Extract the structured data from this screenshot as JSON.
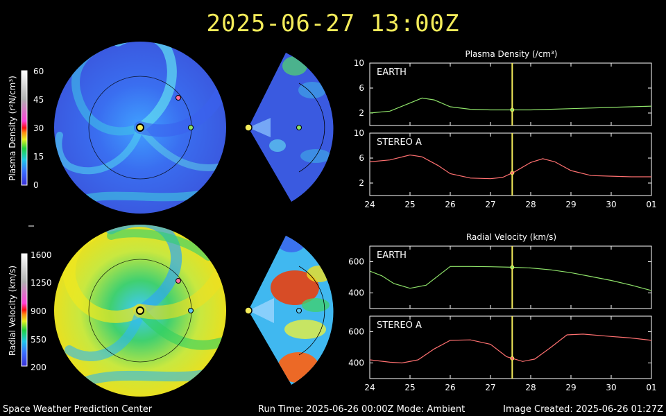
{
  "header": {
    "title": "2025-06-27 13:00Z"
  },
  "footer": {
    "left": "Space Weather Prediction Center",
    "center": "Run Time: 2025-06-26 00:00Z  Mode: Ambient",
    "right": "Image Created: 2025-06-26 01:27Z"
  },
  "colorbars": {
    "density": {
      "label": "Plasma Density (r²N/cm³)",
      "ticks": [
        "60",
        "45",
        "30",
        "15",
        "0"
      ]
    },
    "velocity": {
      "label": "Radial Velocity (km/s)",
      "ticks": [
        "1600",
        "1250",
        "900",
        "550",
        "200"
      ]
    }
  },
  "colors": {
    "earth": "#8fe36a",
    "stereo_a": "#ff7070",
    "marker": "#f4ec5a",
    "title": "#f4ec5a"
  },
  "chart_data": [
    {
      "type": "line",
      "title": "Plasma Density (/cm³)",
      "panel": "EARTH",
      "x_tick_labels": [
        "24",
        "25",
        "26",
        "27",
        "28",
        "29",
        "30",
        "01"
      ],
      "xlim": [
        24,
        31
      ],
      "ylim": [
        0,
        10
      ],
      "yticks": [
        2,
        6,
        10
      ],
      "current_time": 27.54,
      "series": [
        {
          "name": "EARTH",
          "x": [
            24,
            24.5,
            25,
            25.3,
            25.6,
            26,
            26.5,
            27,
            27.5,
            28,
            28.5,
            29,
            29.5,
            30,
            30.5,
            31
          ],
          "y": [
            2.0,
            2.3,
            3.6,
            4.4,
            4.1,
            3.0,
            2.6,
            2.5,
            2.5,
            2.5,
            2.6,
            2.7,
            2.8,
            2.9,
            3.0,
            3.1
          ]
        }
      ]
    },
    {
      "type": "line",
      "panel": "STEREO A",
      "x_tick_labels": [
        "24",
        "25",
        "26",
        "27",
        "28",
        "29",
        "30",
        "01"
      ],
      "xlim": [
        24,
        31
      ],
      "ylim": [
        0,
        10
      ],
      "yticks": [
        2,
        6,
        10
      ],
      "current_time": 27.54,
      "series": [
        {
          "name": "STEREO A",
          "x": [
            24,
            24.5,
            25,
            25.3,
            25.7,
            26,
            26.5,
            27,
            27.3,
            27.6,
            28,
            28.3,
            28.6,
            29,
            29.5,
            30,
            30.5,
            31
          ],
          "y": [
            5.4,
            5.7,
            6.5,
            6.2,
            4.8,
            3.5,
            2.8,
            2.7,
            2.9,
            3.8,
            5.3,
            5.9,
            5.4,
            4.0,
            3.2,
            3.1,
            3.0,
            3.0
          ]
        }
      ]
    },
    {
      "type": "line",
      "title": "Radial Velocity (km/s)",
      "panel": "EARTH",
      "x_tick_labels": [
        "24",
        "25",
        "26",
        "27",
        "28",
        "29",
        "30",
        "01"
      ],
      "xlim": [
        24,
        31
      ],
      "ylim": [
        300,
        700
      ],
      "yticks": [
        400,
        600
      ],
      "current_time": 27.54,
      "series": [
        {
          "name": "EARTH",
          "x": [
            24,
            24.3,
            24.6,
            25,
            25.4,
            25.8,
            26,
            26.5,
            27,
            27.5,
            28,
            28.5,
            29,
            29.5,
            30,
            30.5,
            31
          ],
          "y": [
            540,
            510,
            460,
            430,
            450,
            530,
            570,
            570,
            568,
            565,
            560,
            548,
            530,
            505,
            480,
            450,
            415
          ]
        }
      ]
    },
    {
      "type": "line",
      "panel": "STEREO A",
      "x_tick_labels": [
        "24",
        "25",
        "26",
        "27",
        "28",
        "29",
        "30",
        "01"
      ],
      "xlim": [
        24,
        31
      ],
      "ylim": [
        300,
        700
      ],
      "yticks": [
        400,
        600
      ],
      "current_time": 27.54,
      "series": [
        {
          "name": "STEREO A",
          "x": [
            24,
            24.5,
            24.8,
            25.2,
            25.6,
            26,
            26.5,
            27,
            27.4,
            27.8,
            28.1,
            28.5,
            28.9,
            29.3,
            30,
            30.5,
            31
          ],
          "y": [
            420,
            405,
            400,
            420,
            490,
            545,
            548,
            520,
            440,
            410,
            425,
            500,
            580,
            585,
            570,
            560,
            545
          ]
        }
      ]
    }
  ]
}
